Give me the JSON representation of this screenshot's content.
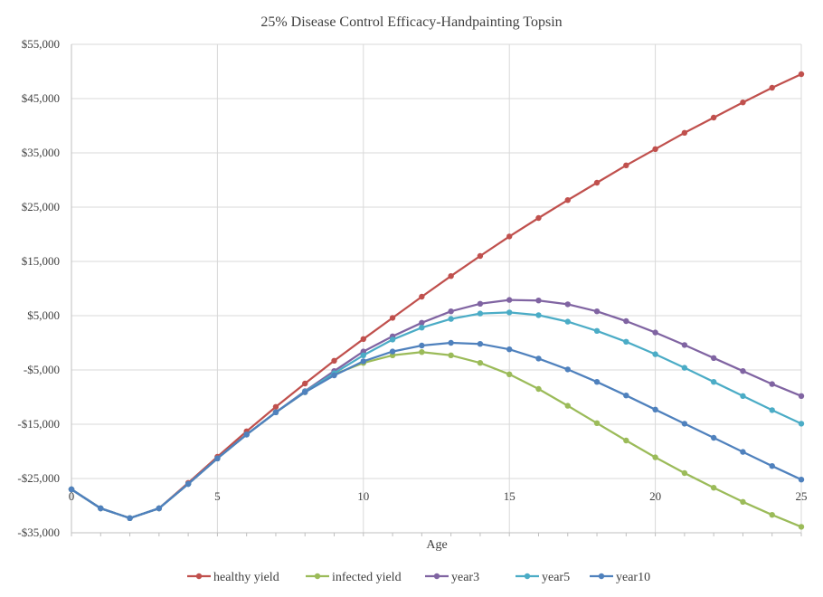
{
  "chart_data": {
    "type": "line",
    "title": "25% Disease Control Efficacy-Handpainting  Topsin",
    "xlabel": "Age",
    "ylabel": "",
    "xlim": [
      0,
      25
    ],
    "ylim": [
      -35000,
      55000
    ],
    "x_ticks": [
      0,
      5,
      10,
      15,
      20,
      25
    ],
    "x_tick_labels": [
      "0",
      "5",
      "10",
      "15",
      "20",
      "25"
    ],
    "y_ticks": [
      -35000,
      -25000,
      -15000,
      -5000,
      5000,
      15000,
      25000,
      35000,
      45000,
      55000
    ],
    "y_tick_labels": [
      "-$35,000",
      "-$25,000",
      "-$15,000",
      "-$5,000",
      "$5,000",
      "$15,000",
      "$25,000",
      "$35,000",
      "$45,000",
      "$55,000"
    ],
    "grid": true,
    "legend_position": "bottom",
    "x": [
      0,
      1,
      2,
      3,
      4,
      5,
      6,
      7,
      8,
      9,
      10,
      11,
      12,
      13,
      14,
      15,
      16,
      17,
      18,
      19,
      20,
      21,
      22,
      23,
      24,
      25
    ],
    "series": [
      {
        "name": "healthy yield",
        "color": "#c0504d",
        "values": [
          -27000,
          -30500,
          -32300,
          -30500,
          -25800,
          -21000,
          -16300,
          -11800,
          -7500,
          -3300,
          700,
          4600,
          8500,
          12300,
          16000,
          19600,
          23000,
          26300,
          29500,
          32700,
          35700,
          38700,
          41500,
          44300,
          47000,
          49500
        ]
      },
      {
        "name": "infected yield",
        "color": "#9bbb59",
        "values": [
          -27000,
          -30500,
          -32300,
          -30500,
          -26000,
          -21300,
          -16900,
          -12800,
          -9100,
          -5800,
          -3700,
          -2300,
          -1700,
          -2300,
          -3700,
          -5800,
          -8500,
          -11600,
          -14800,
          -18000,
          -21100,
          -24000,
          -26700,
          -29300,
          -31700,
          -33900
        ]
      },
      {
        "name": "year3",
        "color": "#8064a2",
        "values": [
          -27000,
          -30500,
          -32300,
          -30500,
          -26000,
          -21300,
          -16900,
          -12800,
          -8900,
          -5200,
          -1600,
          1200,
          3700,
          5800,
          7200,
          7900,
          7800,
          7100,
          5800,
          4000,
          1900,
          -400,
          -2800,
          -5200,
          -7600,
          -9800
        ]
      },
      {
        "name": "year5",
        "color": "#4bacc6",
        "values": [
          -27000,
          -30500,
          -32300,
          -30500,
          -26000,
          -21300,
          -16900,
          -12800,
          -9000,
          -5600,
          -2300,
          600,
          2800,
          4400,
          5400,
          5600,
          5100,
          3900,
          2200,
          200,
          -2100,
          -4600,
          -7200,
          -9800,
          -12400,
          -14900
        ]
      },
      {
        "name": "year10",
        "color": "#4f81bd",
        "values": [
          -27000,
          -30500,
          -32300,
          -30500,
          -26000,
          -21300,
          -16900,
          -12800,
          -9100,
          -6000,
          -3400,
          -1600,
          -500,
          0,
          -200,
          -1200,
          -2900,
          -4900,
          -7200,
          -9700,
          -12300,
          -14900,
          -17500,
          -20100,
          -22700,
          -25200
        ]
      }
    ]
  }
}
